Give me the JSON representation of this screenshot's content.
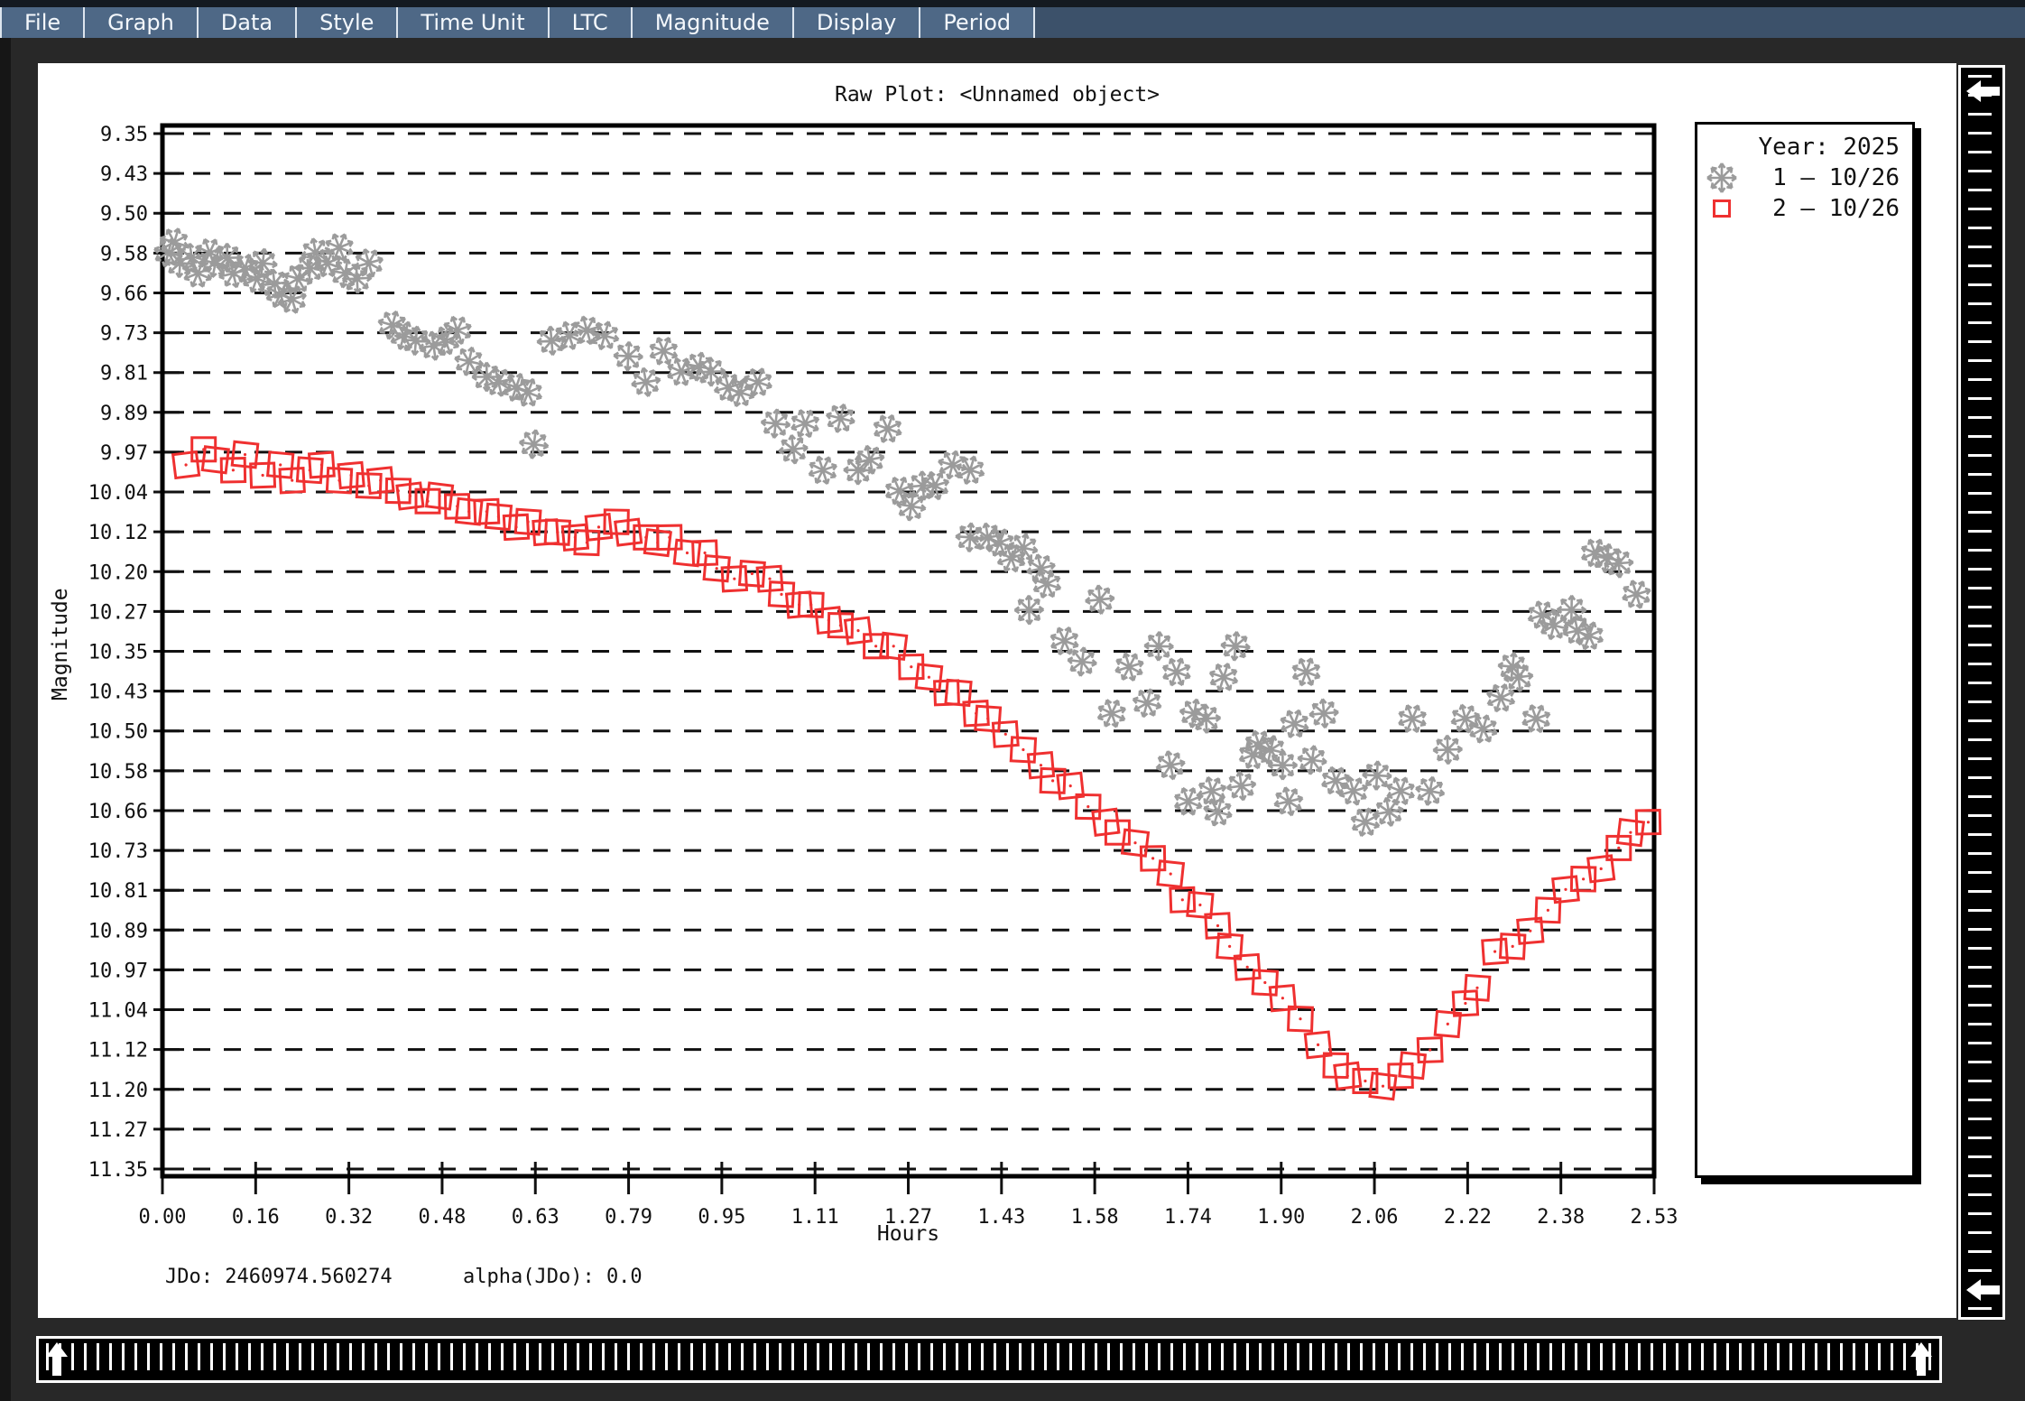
{
  "menu": {
    "items": [
      "File",
      "Graph",
      "Data",
      "Style",
      "Time Unit",
      "LTC",
      "Magnitude",
      "Display",
      "Period"
    ]
  },
  "footer": {
    "jdo": "JDo: 2460974.560274",
    "alpha": "alpha(JDo): 0.0"
  },
  "legend": {
    "title": "Year: 2025",
    "entries": [
      {
        "marker": "flake",
        "color": "#9b9b9b",
        "label": "1 — 10/26"
      },
      {
        "marker": "square",
        "color": "#ef3030",
        "label": "2 — 10/26"
      }
    ]
  },
  "chart_data": {
    "type": "scatter",
    "title": "Raw Plot: <Unnamed object>",
    "xlabel": "Hours",
    "ylabel": "Magnitude",
    "xlim": [
      0.0,
      2.53
    ],
    "ylim": [
      9.35,
      11.35
    ],
    "y_axis_inverted_magnitude": true,
    "grid": "horizontal dashed",
    "legend_position": "top-right",
    "x_ticks": [
      "0.00",
      "0.16",
      "0.32",
      "0.48",
      "0.63",
      "0.79",
      "0.95",
      "1.11",
      "1.27",
      "1.43",
      "1.58",
      "1.74",
      "1.90",
      "2.06",
      "2.22",
      "2.38",
      "2.53"
    ],
    "y_ticks": [
      "9.35",
      "9.43",
      "9.50",
      "9.58",
      "9.66",
      "9.73",
      "9.81",
      "9.89",
      "9.97",
      "10.04",
      "10.12",
      "10.20",
      "10.27",
      "10.35",
      "10.43",
      "10.50",
      "10.58",
      "10.66",
      "10.73",
      "10.81",
      "10.89",
      "10.97",
      "11.04",
      "11.12",
      "11.20",
      "11.27",
      "11.35"
    ],
    "series": [
      {
        "name": "1 — 10/26",
        "marker": "flake",
        "color": "#9b9b9b",
        "points": [
          [
            0.01,
            9.58
          ],
          [
            0.02,
            9.56
          ],
          [
            0.03,
            9.6
          ],
          [
            0.05,
            9.59
          ],
          [
            0.06,
            9.62
          ],
          [
            0.08,
            9.58
          ],
          [
            0.09,
            9.6
          ],
          [
            0.11,
            9.59
          ],
          [
            0.12,
            9.62
          ],
          [
            0.14,
            9.61
          ],
          [
            0.16,
            9.63
          ],
          [
            0.17,
            9.6
          ],
          [
            0.19,
            9.64
          ],
          [
            0.2,
            9.66
          ],
          [
            0.22,
            9.67
          ],
          [
            0.23,
            9.63
          ],
          [
            0.25,
            9.61
          ],
          [
            0.26,
            9.58
          ],
          [
            0.28,
            9.6
          ],
          [
            0.3,
            9.57
          ],
          [
            0.31,
            9.62
          ],
          [
            0.33,
            9.63
          ],
          [
            0.35,
            9.6
          ],
          [
            0.39,
            9.72
          ],
          [
            0.41,
            9.74
          ],
          [
            0.43,
            9.75
          ],
          [
            0.46,
            9.76
          ],
          [
            0.48,
            9.75
          ],
          [
            0.5,
            9.73
          ],
          [
            0.52,
            9.79
          ],
          [
            0.55,
            9.82
          ],
          [
            0.57,
            9.83
          ],
          [
            0.6,
            9.84
          ],
          [
            0.62,
            9.85
          ],
          [
            0.63,
            9.95
          ],
          [
            0.66,
            9.75
          ],
          [
            0.69,
            9.74
          ],
          [
            0.72,
            9.73
          ],
          [
            0.75,
            9.74
          ],
          [
            0.79,
            9.78
          ],
          [
            0.82,
            9.83
          ],
          [
            0.85,
            9.77
          ],
          [
            0.88,
            9.81
          ],
          [
            0.91,
            9.8
          ],
          [
            0.93,
            9.81
          ],
          [
            0.96,
            9.84
          ],
          [
            0.98,
            9.85
          ],
          [
            1.01,
            9.83
          ],
          [
            1.04,
            9.91
          ],
          [
            1.07,
            9.96
          ],
          [
            1.09,
            9.91
          ],
          [
            1.12,
            10.0
          ],
          [
            1.15,
            9.9
          ],
          [
            1.18,
            10.0
          ],
          [
            1.2,
            9.98
          ],
          [
            1.23,
            9.92
          ],
          [
            1.25,
            10.04
          ],
          [
            1.27,
            10.07
          ],
          [
            1.29,
            10.03
          ],
          [
            1.31,
            10.03
          ],
          [
            1.34,
            9.99
          ],
          [
            1.37,
            10.0
          ],
          [
            1.37,
            10.13
          ],
          [
            1.4,
            10.13
          ],
          [
            1.42,
            10.14
          ],
          [
            1.44,
            10.17
          ],
          [
            1.46,
            10.15
          ],
          [
            1.47,
            10.27
          ],
          [
            1.49,
            10.19
          ],
          [
            1.5,
            10.22
          ],
          [
            1.53,
            10.33
          ],
          [
            1.56,
            10.37
          ],
          [
            1.59,
            10.25
          ],
          [
            1.61,
            10.47
          ],
          [
            1.64,
            10.38
          ],
          [
            1.67,
            10.45
          ],
          [
            1.69,
            10.34
          ],
          [
            1.71,
            10.57
          ],
          [
            1.72,
            10.39
          ],
          [
            1.74,
            10.64
          ],
          [
            1.75,
            10.47
          ],
          [
            1.77,
            10.48
          ],
          [
            1.78,
            10.62
          ],
          [
            1.79,
            10.66
          ],
          [
            1.8,
            10.4
          ],
          [
            1.82,
            10.34
          ],
          [
            1.83,
            10.61
          ],
          [
            1.85,
            10.55
          ],
          [
            1.86,
            10.53
          ],
          [
            1.88,
            10.54
          ],
          [
            1.9,
            10.57
          ],
          [
            1.91,
            10.64
          ],
          [
            1.92,
            10.49
          ],
          [
            1.94,
            10.39
          ],
          [
            1.95,
            10.56
          ],
          [
            1.97,
            10.47
          ],
          [
            1.99,
            10.6
          ],
          [
            2.02,
            10.62
          ],
          [
            2.04,
            10.68
          ],
          [
            2.06,
            10.59
          ],
          [
            2.08,
            10.66
          ],
          [
            2.1,
            10.62
          ],
          [
            2.12,
            10.48
          ],
          [
            2.15,
            10.62
          ],
          [
            2.18,
            10.54
          ],
          [
            2.21,
            10.48
          ],
          [
            2.24,
            10.5
          ],
          [
            2.27,
            10.44
          ],
          [
            2.29,
            10.38
          ],
          [
            2.3,
            10.4
          ],
          [
            2.33,
            10.48
          ],
          [
            2.34,
            10.28
          ],
          [
            2.36,
            10.3
          ],
          [
            2.39,
            10.27
          ],
          [
            2.4,
            10.31
          ],
          [
            2.42,
            10.32
          ],
          [
            2.43,
            10.16
          ],
          [
            2.45,
            10.17
          ],
          [
            2.47,
            10.18
          ],
          [
            2.5,
            10.24
          ]
        ]
      },
      {
        "name": "2 — 10/26",
        "marker": "square",
        "color": "#ef3030",
        "points": [
          [
            0.04,
            9.99
          ],
          [
            0.07,
            9.96
          ],
          [
            0.09,
            9.98
          ],
          [
            0.12,
            10.0
          ],
          [
            0.14,
            9.97
          ],
          [
            0.17,
            10.01
          ],
          [
            0.2,
            9.99
          ],
          [
            0.22,
            10.02
          ],
          [
            0.25,
            10.0
          ],
          [
            0.27,
            9.99
          ],
          [
            0.3,
            10.02
          ],
          [
            0.32,
            10.01
          ],
          [
            0.35,
            10.03
          ],
          [
            0.37,
            10.02
          ],
          [
            0.4,
            10.04
          ],
          [
            0.42,
            10.05
          ],
          [
            0.45,
            10.06
          ],
          [
            0.47,
            10.05
          ],
          [
            0.5,
            10.07
          ],
          [
            0.52,
            10.08
          ],
          [
            0.55,
            10.08
          ],
          [
            0.57,
            10.09
          ],
          [
            0.6,
            10.11
          ],
          [
            0.62,
            10.1
          ],
          [
            0.65,
            10.12
          ],
          [
            0.67,
            10.12
          ],
          [
            0.7,
            10.13
          ],
          [
            0.72,
            10.14
          ],
          [
            0.74,
            10.11
          ],
          [
            0.77,
            10.1
          ],
          [
            0.79,
            10.12
          ],
          [
            0.82,
            10.13
          ],
          [
            0.84,
            10.14
          ],
          [
            0.86,
            10.13
          ],
          [
            0.89,
            10.16
          ],
          [
            0.92,
            10.16
          ],
          [
            0.94,
            10.19
          ],
          [
            0.97,
            10.21
          ],
          [
            1.0,
            10.2
          ],
          [
            1.03,
            10.21
          ],
          [
            1.05,
            10.24
          ],
          [
            1.08,
            10.26
          ],
          [
            1.1,
            10.26
          ],
          [
            1.13,
            10.29
          ],
          [
            1.15,
            10.3
          ],
          [
            1.18,
            10.31
          ],
          [
            1.21,
            10.34
          ],
          [
            1.24,
            10.34
          ],
          [
            1.27,
            10.38
          ],
          [
            1.3,
            10.4
          ],
          [
            1.33,
            10.43
          ],
          [
            1.35,
            10.43
          ],
          [
            1.38,
            10.47
          ],
          [
            1.4,
            10.48
          ],
          [
            1.43,
            10.51
          ],
          [
            1.46,
            10.54
          ],
          [
            1.49,
            10.57
          ],
          [
            1.51,
            10.6
          ],
          [
            1.54,
            10.61
          ],
          [
            1.57,
            10.65
          ],
          [
            1.6,
            10.68
          ],
          [
            1.62,
            10.7
          ],
          [
            1.65,
            10.72
          ],
          [
            1.68,
            10.75
          ],
          [
            1.71,
            10.78
          ],
          [
            1.73,
            10.83
          ],
          [
            1.76,
            10.84
          ],
          [
            1.79,
            10.88
          ],
          [
            1.81,
            10.92
          ],
          [
            1.84,
            10.96
          ],
          [
            1.87,
            10.99
          ],
          [
            1.9,
            11.02
          ],
          [
            1.93,
            11.06
          ],
          [
            1.96,
            11.11
          ],
          [
            1.99,
            11.15
          ],
          [
            2.01,
            11.17
          ],
          [
            2.04,
            11.18
          ],
          [
            2.07,
            11.19
          ],
          [
            2.1,
            11.17
          ],
          [
            2.12,
            11.15
          ],
          [
            2.15,
            11.12
          ],
          [
            2.18,
            11.07
          ],
          [
            2.21,
            11.03
          ],
          [
            2.23,
            11.0
          ],
          [
            2.26,
            10.93
          ],
          [
            2.29,
            10.92
          ],
          [
            2.32,
            10.89
          ],
          [
            2.35,
            10.85
          ],
          [
            2.38,
            10.81
          ],
          [
            2.41,
            10.79
          ],
          [
            2.44,
            10.77
          ],
          [
            2.47,
            10.73
          ],
          [
            2.49,
            10.7
          ],
          [
            2.52,
            10.68
          ]
        ]
      }
    ]
  }
}
